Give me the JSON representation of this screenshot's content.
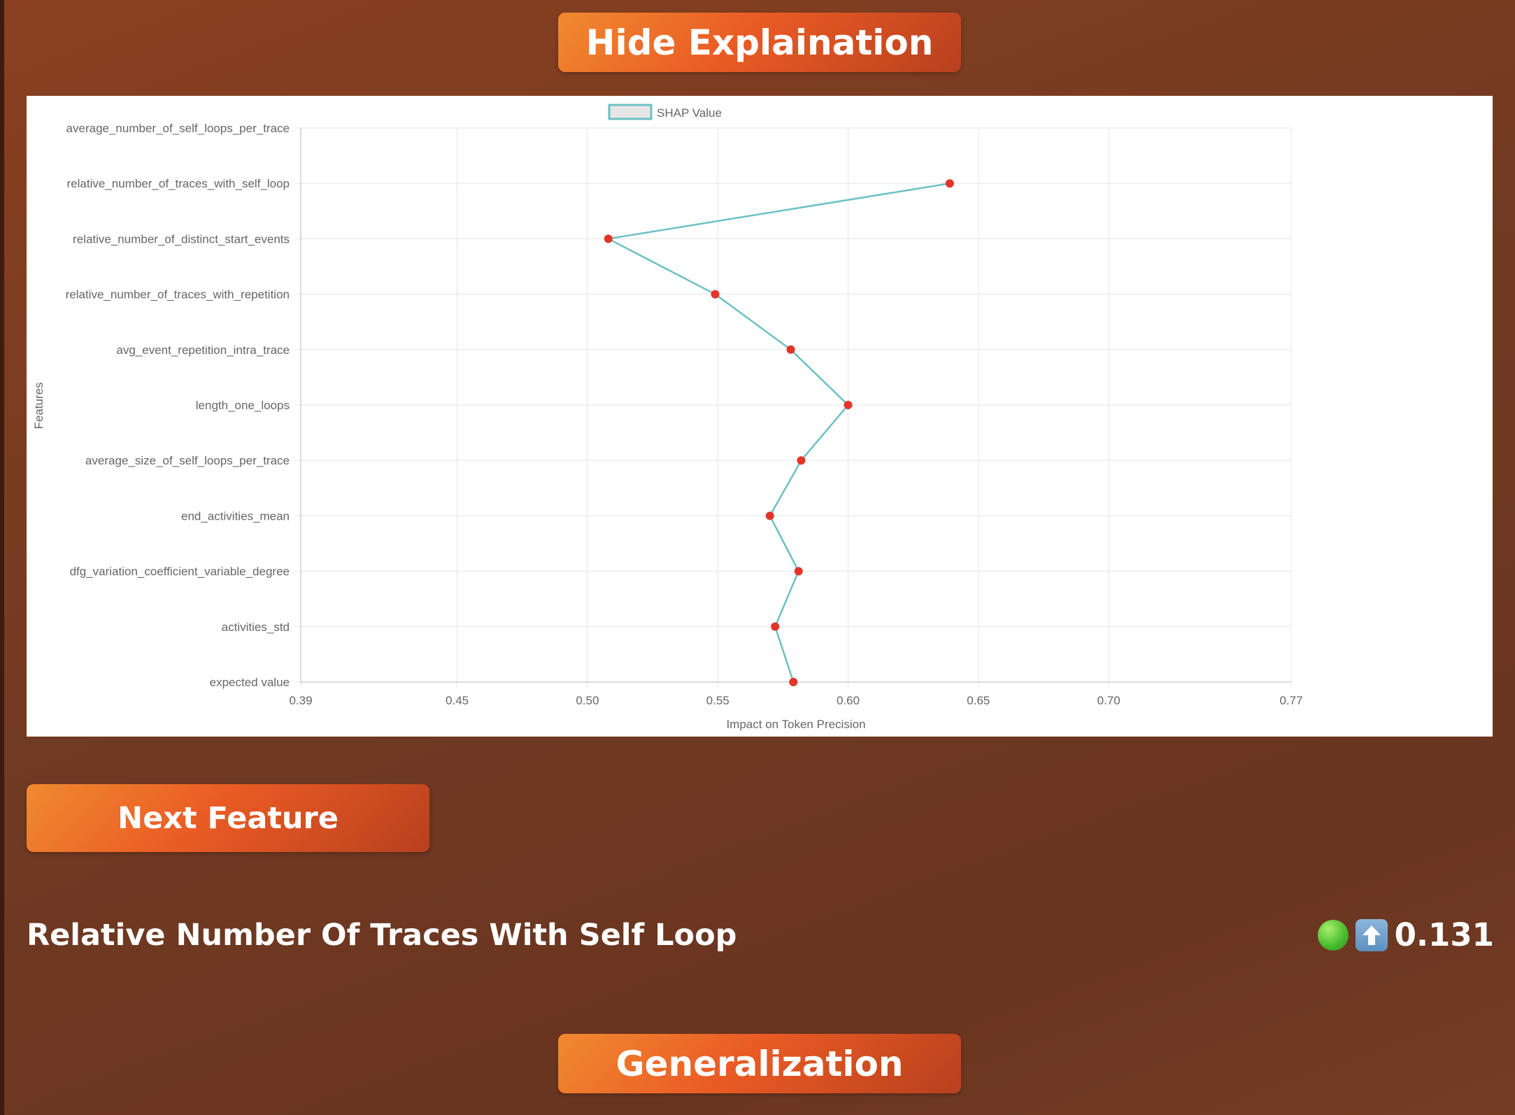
{
  "buttons": {
    "hide_explanation": "Hide Explaination",
    "next_feature": "Next Feature",
    "generalization": "Generalization"
  },
  "feature": {
    "title": "Relative Number Of Traces With Self Loop",
    "value": "0.131",
    "status_icons": [
      "green-circle-icon",
      "up-arrow-icon"
    ]
  },
  "colors": {
    "line": "#6cc0c4",
    "point": "#e3342a",
    "button_start": "#f08a30",
    "button_end": "#b8401e"
  },
  "chart_data": {
    "type": "line",
    "title": "",
    "xlabel": "Impact on Token Precision",
    "ylabel": "Features",
    "xlim": [
      0.39,
      0.77
    ],
    "x_ticks": [
      "0.39",
      "0.45",
      "0.50",
      "0.55",
      "0.60",
      "0.65",
      "0.70",
      "0.77"
    ],
    "x_tick_values": [
      0.39,
      0.45,
      0.5,
      0.55,
      0.6,
      0.65,
      0.7,
      0.77
    ],
    "grid": true,
    "legend": "top",
    "categories": [
      "average_number_of_self_loops_per_trace",
      "relative_number_of_traces_with_self_loop",
      "relative_number_of_distinct_start_events",
      "relative_number_of_traces_with_repetition",
      "avg_event_repetition_intra_trace",
      "length_one_loops",
      "average_size_of_self_loops_per_trace",
      "end_activities_mean",
      "dfg_variation_coefficient_variable_degree",
      "activities_std",
      "expected value"
    ],
    "series": [
      {
        "name": "SHAP Value",
        "values": [
          null,
          0.639,
          0.508,
          0.549,
          0.578,
          0.6,
          0.582,
          0.57,
          0.581,
          0.572,
          0.579
        ]
      }
    ]
  }
}
